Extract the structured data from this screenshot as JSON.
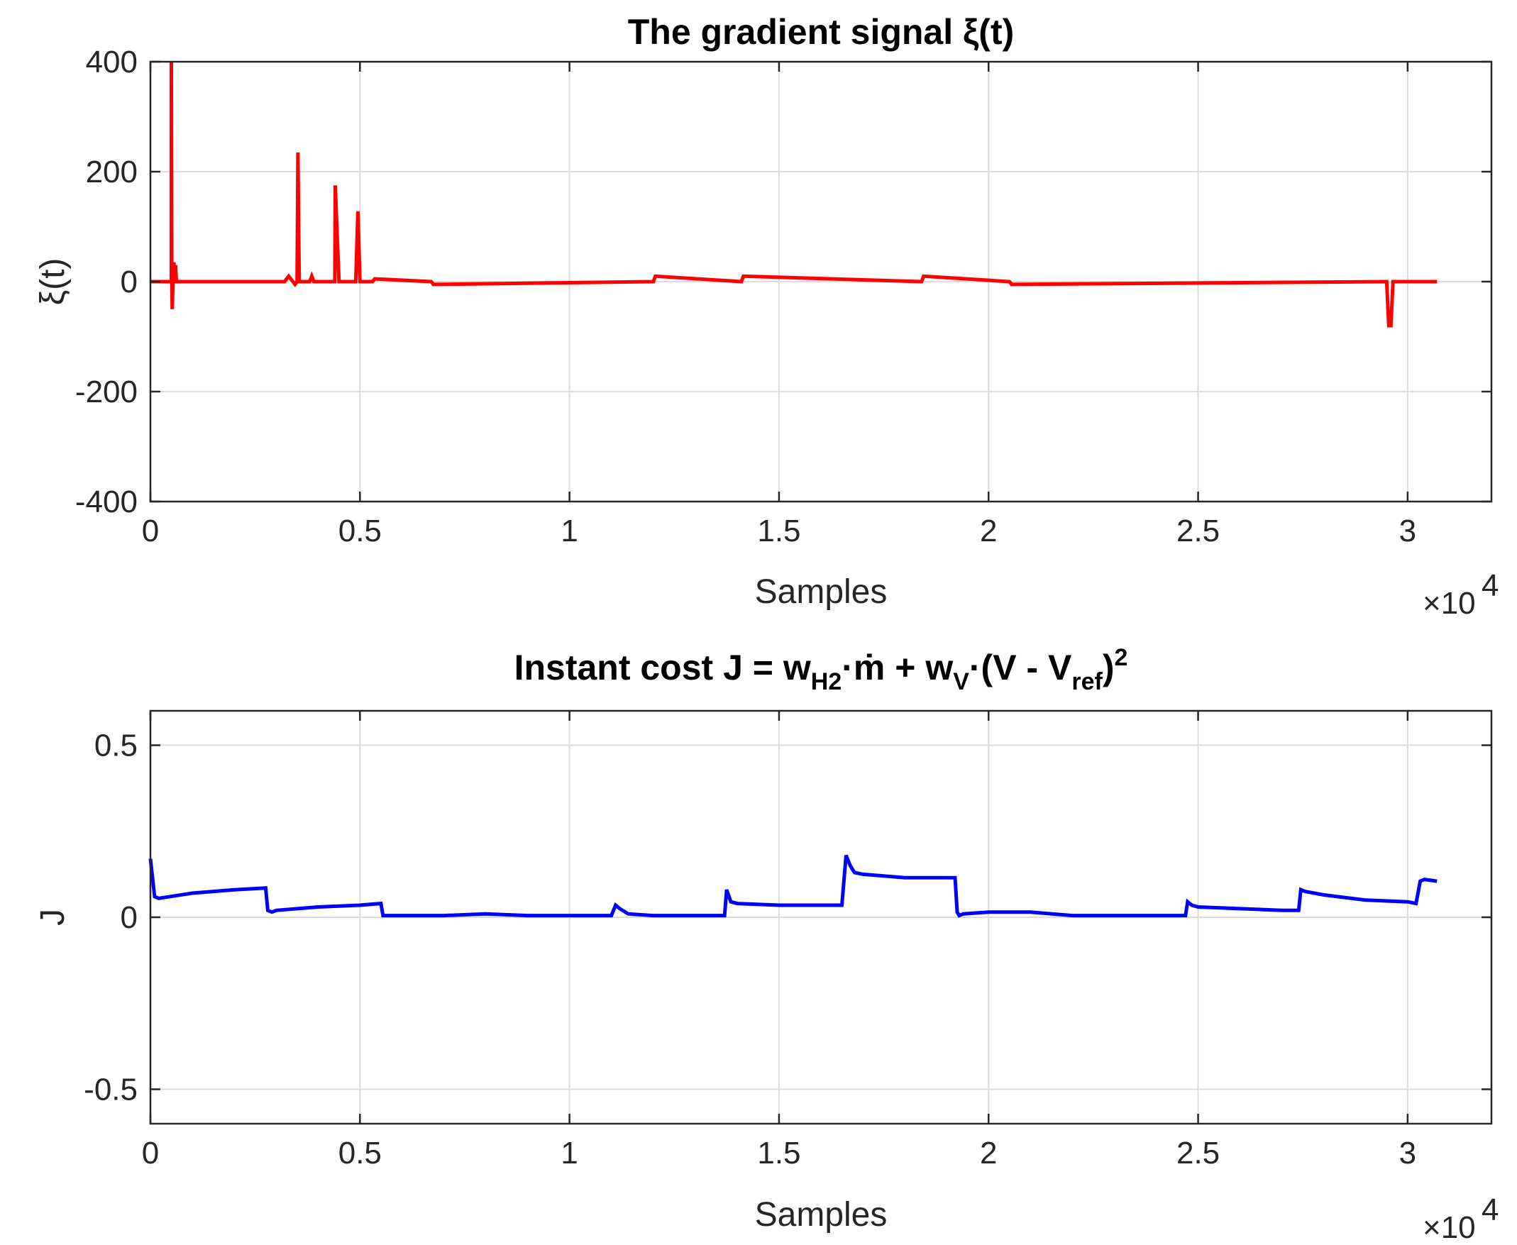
{
  "chart_data": [
    {
      "type": "line",
      "title": "The gradient signal ξ(t)",
      "xlabel": "Samples",
      "ylabel": "ξ(t)",
      "x_exponent_label": "×10",
      "x_exponent_power": "4",
      "xlim": [
        0,
        32000
      ],
      "ylim": [
        -400,
        400
      ],
      "xticks": [
        0,
        5000,
        10000,
        15000,
        20000,
        25000,
        30000
      ],
      "xtick_labels": [
        "0",
        "0.5",
        "1",
        "1.5",
        "2",
        "2.5",
        "3"
      ],
      "yticks": [
        -400,
        -200,
        0,
        200,
        400
      ],
      "ytick_labels": [
        "-400",
        "-200",
        "0",
        "200",
        "400"
      ],
      "grid": true,
      "series": [
        {
          "color": "#ff0000",
          "x": [
            0,
            500,
            500,
            510,
            520,
            540,
            560,
            580,
            600,
            620,
            650,
            700,
            750,
            800,
            3200,
            3300,
            3400,
            3450,
            3500,
            3520,
            3550,
            3600,
            3800,
            3850,
            3900,
            4350,
            4400,
            4410,
            4500,
            4550,
            4900,
            4950,
            5000,
            5300,
            5350,
            6700,
            6750,
            12000,
            12050,
            14100,
            14150,
            18400,
            18450,
            20500,
            20550,
            29500,
            29550,
            29600,
            29650,
            30700
          ],
          "y": [
            0,
            0,
            400,
            5,
            -50,
            0,
            35,
            0,
            30,
            0,
            0,
            0,
            0,
            0,
            0,
            10,
            0,
            -5,
            0,
            235,
            0,
            0,
            0,
            10,
            0,
            0,
            0,
            175,
            0,
            0,
            0,
            128,
            0,
            0,
            5,
            0,
            -5,
            0,
            10,
            0,
            10,
            0,
            10,
            0,
            -5,
            0,
            -80,
            -80,
            0,
            0
          ]
        }
      ]
    },
    {
      "type": "line",
      "title_main": "Instant cost J = w",
      "title_sub1": "H2",
      "title_mid1": "·ṁ + w",
      "title_sub2": "V",
      "title_mid2": "·(V - V",
      "title_sub3": "ref",
      "title_end": ")",
      "title_sup": "2",
      "xlabel": "Samples",
      "ylabel": "J",
      "x_exponent_label": "×10",
      "x_exponent_power": "4",
      "xlim": [
        0,
        32000
      ],
      "ylim": [
        -0.6,
        0.6
      ],
      "xticks": [
        0,
        5000,
        10000,
        15000,
        20000,
        25000,
        30000
      ],
      "xtick_labels": [
        "0",
        "0.5",
        "1",
        "1.5",
        "2",
        "2.5",
        "3"
      ],
      "yticks": [
        -0.5,
        0,
        0.5
      ],
      "ytick_labels": [
        "-0.5",
        "0",
        "0.5"
      ],
      "grid": true,
      "series": [
        {
          "color": "#0000ff",
          "x": [
            0,
            100,
            200,
            1000,
            2000,
            2750,
            2800,
            2900,
            3000,
            4000,
            5000,
            5500,
            5550,
            5600,
            7000,
            8000,
            9000,
            10000,
            11000,
            11100,
            11200,
            11400,
            12000,
            13000,
            13700,
            13750,
            13850,
            14000,
            15000,
            16500,
            16600,
            16700,
            16800,
            17000,
            18000,
            19200,
            19250,
            19300,
            19400,
            20000,
            21000,
            22000,
            23000,
            24000,
            24700,
            24750,
            24850,
            25000,
            26000,
            27000,
            27400,
            27450,
            27550,
            28000,
            29000,
            30000,
            30200,
            30300,
            30400,
            30700
          ],
          "y": [
            0.17,
            0.06,
            0.055,
            0.07,
            0.08,
            0.085,
            0.02,
            0.015,
            0.02,
            0.03,
            0.035,
            0.04,
            0.005,
            0.005,
            0.005,
            0.01,
            0.005,
            0.005,
            0.005,
            0.035,
            0.025,
            0.01,
            0.005,
            0.005,
            0.005,
            0.08,
            0.045,
            0.04,
            0.035,
            0.035,
            0.18,
            0.15,
            0.13,
            0.125,
            0.115,
            0.115,
            0.015,
            0.005,
            0.01,
            0.015,
            0.015,
            0.005,
            0.005,
            0.005,
            0.005,
            0.045,
            0.035,
            0.03,
            0.025,
            0.02,
            0.02,
            0.08,
            0.075,
            0.065,
            0.05,
            0.045,
            0.04,
            0.105,
            0.11,
            0.105
          ]
        }
      ]
    }
  ]
}
